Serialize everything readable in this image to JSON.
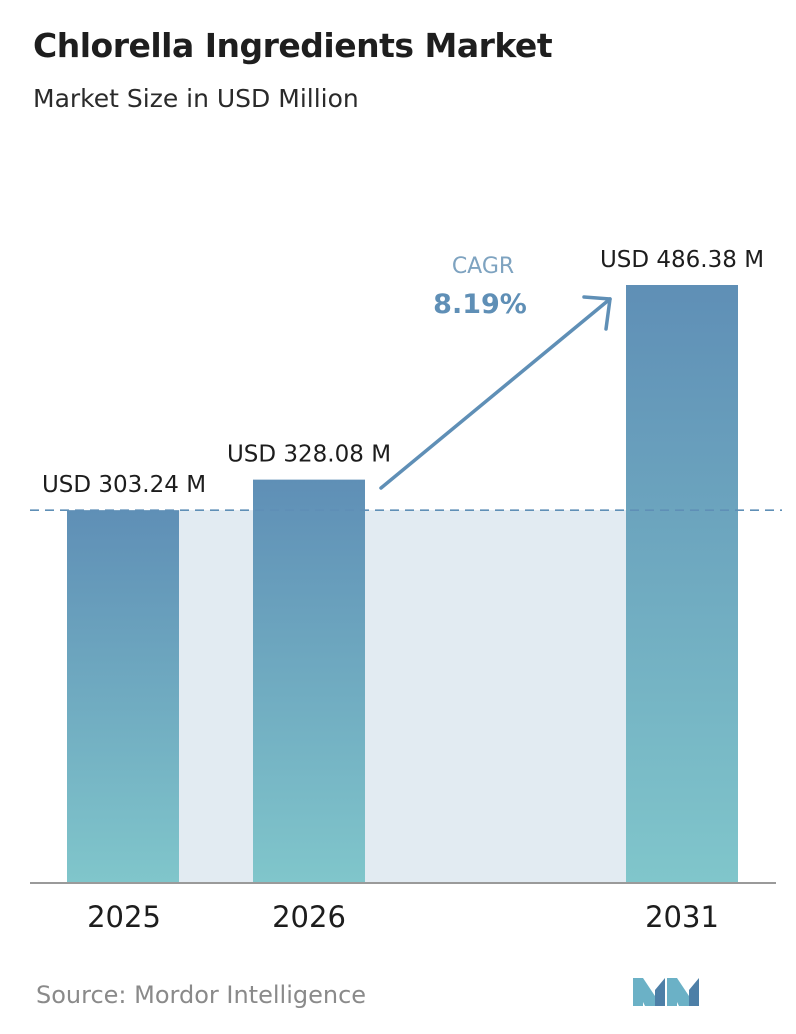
{
  "header": {
    "title": "Chlorella Ingredients Market",
    "subtitle": "Market Size in USD Million"
  },
  "chart_data": {
    "type": "bar",
    "categories": [
      "2025",
      "2026",
      "2031"
    ],
    "values": [
      303.24,
      328.08,
      486.38
    ],
    "value_labels": [
      "USD 303.24 M",
      "USD 328.08 M",
      "USD 486.38 M"
    ],
    "title": "Chlorella Ingredients Market",
    "subtitle": "Market Size in USD Million",
    "xlabel": "",
    "ylabel": "",
    "ylim": [
      0,
      486.38
    ],
    "grid": false,
    "reference_line": {
      "value": 303.24,
      "style": "dashed"
    },
    "annotation": {
      "label": "CAGR",
      "value": "8.19%"
    },
    "colors": {
      "bar_top": "#5f8fb6",
      "bar_bottom": "#80c6cb",
      "band": "#e2ebf2",
      "arrow": "#5f8fb6",
      "dashed_line": "#5f8fb6",
      "axis": "#9a9a9a"
    }
  },
  "footer": {
    "source": "Source: Mordor Intelligence",
    "logo_icon": "mordor-intelligence-logo-icon"
  }
}
